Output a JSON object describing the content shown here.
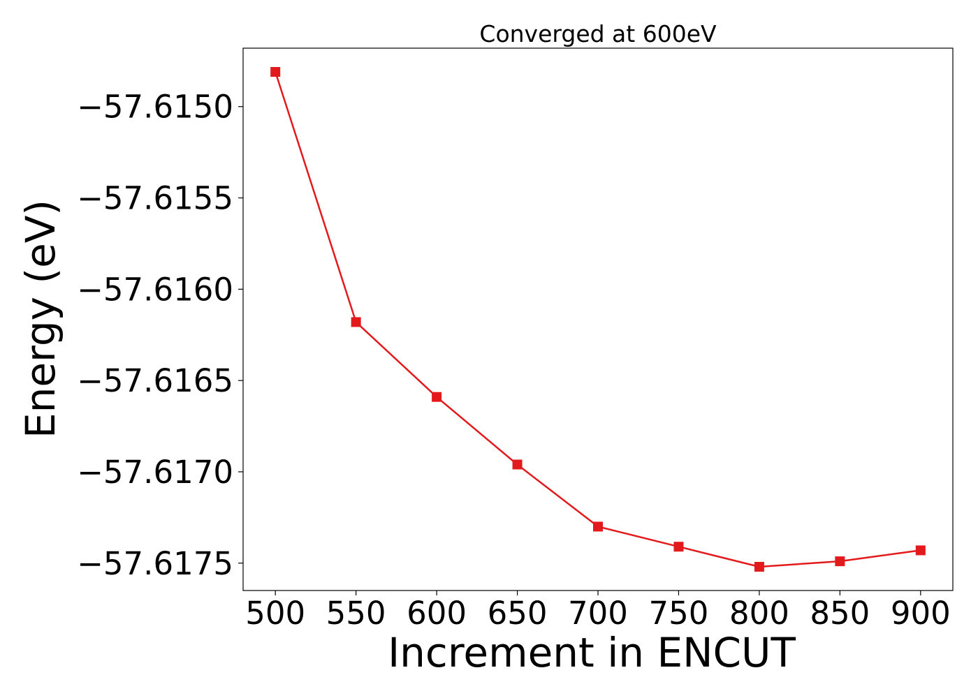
{
  "chart_data": {
    "type": "line",
    "title": "Converged at 600eV",
    "xlabel": "Increment in ENCUT",
    "ylabel": "Energy (eV)",
    "x_ticks": [
      500,
      550,
      600,
      650,
      700,
      750,
      800,
      850,
      900
    ],
    "x_tick_labels": [
      "500",
      "550",
      "600",
      "650",
      "700",
      "750",
      "800",
      "850",
      "900"
    ],
    "y_ticks": [
      -57.615,
      -57.6155,
      -57.616,
      -57.6165,
      -57.617,
      -57.6175
    ],
    "y_tick_labels": [
      "−57.6150",
      "−57.6155",
      "−57.6160",
      "−57.6165",
      "−57.6170",
      "−57.6175"
    ],
    "xlim": [
      480,
      920
    ],
    "ylim": [
      -57.61765,
      -57.61468
    ],
    "grid": false,
    "series": [
      {
        "color": "#e31a1c",
        "marker": "square",
        "x": [
          500,
          550,
          600,
          650,
          700,
          750,
          800,
          850,
          900
        ],
        "y": [
          -57.61481,
          -57.61618,
          -57.61659,
          -57.61696,
          -57.6173,
          -57.61741,
          -57.61752,
          -57.61749,
          -57.61743
        ]
      }
    ]
  }
}
